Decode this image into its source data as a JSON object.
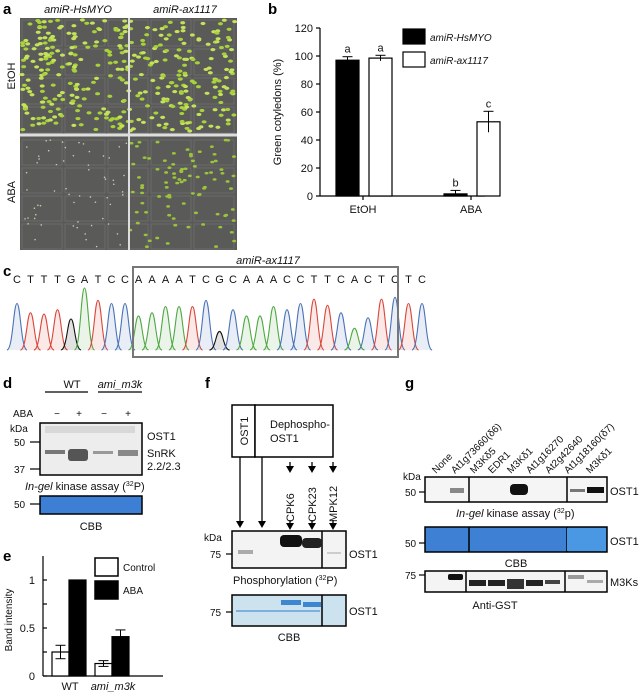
{
  "panels": {
    "a": "a",
    "b": "b",
    "c": "c",
    "d": "d",
    "e": "e",
    "f": "f",
    "g": "g"
  },
  "panel_a": {
    "col_labels": [
      "amiR-HsMYO",
      "amiR-ax1117"
    ],
    "row_labels": [
      "EtOH",
      "ABA"
    ]
  },
  "chart_data": [
    {
      "type": "bar",
      "panel": "b",
      "categories": [
        "EtOH",
        "ABA"
      ],
      "series": [
        {
          "name": "amiR-HsMYO",
          "values": [
            97,
            1.5
          ],
          "errors": [
            2.5,
            2.5
          ],
          "letters": [
            "a",
            "b"
          ],
          "color": "#000000"
        },
        {
          "name": "amiR-ax1117",
          "values": [
            98.5,
            53
          ],
          "errors": [
            2,
            7.5
          ],
          "letters": [
            "a",
            "c"
          ],
          "color": "#ffffff"
        }
      ],
      "ylabel": "Green cotyledons (%)",
      "ylim": [
        0,
        120
      ],
      "yticks": [
        0,
        20,
        40,
        60,
        80,
        100,
        120
      ],
      "legend": "top-right"
    },
    {
      "type": "bar",
      "panel": "e",
      "categories": [
        "WT",
        "ami_m3k"
      ],
      "series": [
        {
          "name": "Control",
          "values": [
            0.25,
            0.13
          ],
          "errors": [
            0.07,
            0.03
          ],
          "color": "#ffffff"
        },
        {
          "name": "ABA",
          "values": [
            1.0,
            0.41
          ],
          "errors": [
            0,
            0.07
          ],
          "color": "#000000"
        }
      ],
      "ylabel": "Band intensity",
      "ylim": [
        0,
        1.25
      ],
      "yticks": [
        "0",
        "0.5",
        "1"
      ],
      "legend": "top-right"
    }
  ],
  "panel_c": {
    "title": "amiR-ax1117",
    "sequence": [
      "C",
      "T",
      "T",
      "T",
      "G",
      "A",
      "T",
      "C",
      "C",
      "A",
      "A",
      "A",
      "A",
      "T",
      "C",
      "G",
      "C",
      "A",
      "A",
      "A",
      "C",
      "C",
      "T",
      "T",
      "C",
      "A",
      "C",
      "T",
      "C",
      "T",
      "C"
    ],
    "base_colors": {
      "A": "#4fa843",
      "C": "#4a72b8",
      "G": "#111111",
      "T": "#d9463a"
    }
  },
  "panel_d": {
    "groups": [
      "WT",
      "ami_m3k"
    ],
    "row_label": "ABA",
    "treatments": [
      "−",
      "+",
      "−",
      "+"
    ],
    "kda": "kDa",
    "markers": [
      "50",
      "37"
    ],
    "band_labels": [
      "OST1",
      "SnRK",
      "2.2/2.3"
    ],
    "assay_italic": "In-gel",
    "assay_rest": " kinase assay (",
    "isotope_sup": "32",
    "assay_end": "P)",
    "cbb_marker": "50",
    "cbb": "CBB"
  },
  "panel_f": {
    "box_ost1": "OST1",
    "box_dephospho": [
      "Dephospho-",
      "OST1"
    ],
    "lanes": [
      "CPK6",
      "CPK23",
      "MPK12"
    ],
    "kda": "kDa",
    "marker": "75",
    "band": "OST1",
    "assay": "Phosphorylation (",
    "isotope_sup": "32",
    "assay_end": "P)",
    "cbb_marker": "75",
    "cbb_band": "OST1",
    "cbb": "CBB"
  },
  "panel_g": {
    "lanes": [
      "None",
      "At1g73660(δ6)",
      "M3Kδ5",
      "EDR1",
      "M3Kδ1",
      "At1g16270",
      "At2g42640",
      "At1g18160(δ7)",
      "M3Kδ1"
    ],
    "kda": "kDa",
    "markers": [
      "50",
      "50",
      "75"
    ],
    "band1": "OST1",
    "assay_italic": "In-gel",
    "assay_rest": " kinase assay (",
    "isotope_sup": "32",
    "assay_end": "p)",
    "band2": "OST1",
    "cbb": "CBB",
    "band3": "M3Ks",
    "antigst": "Anti-GST"
  }
}
